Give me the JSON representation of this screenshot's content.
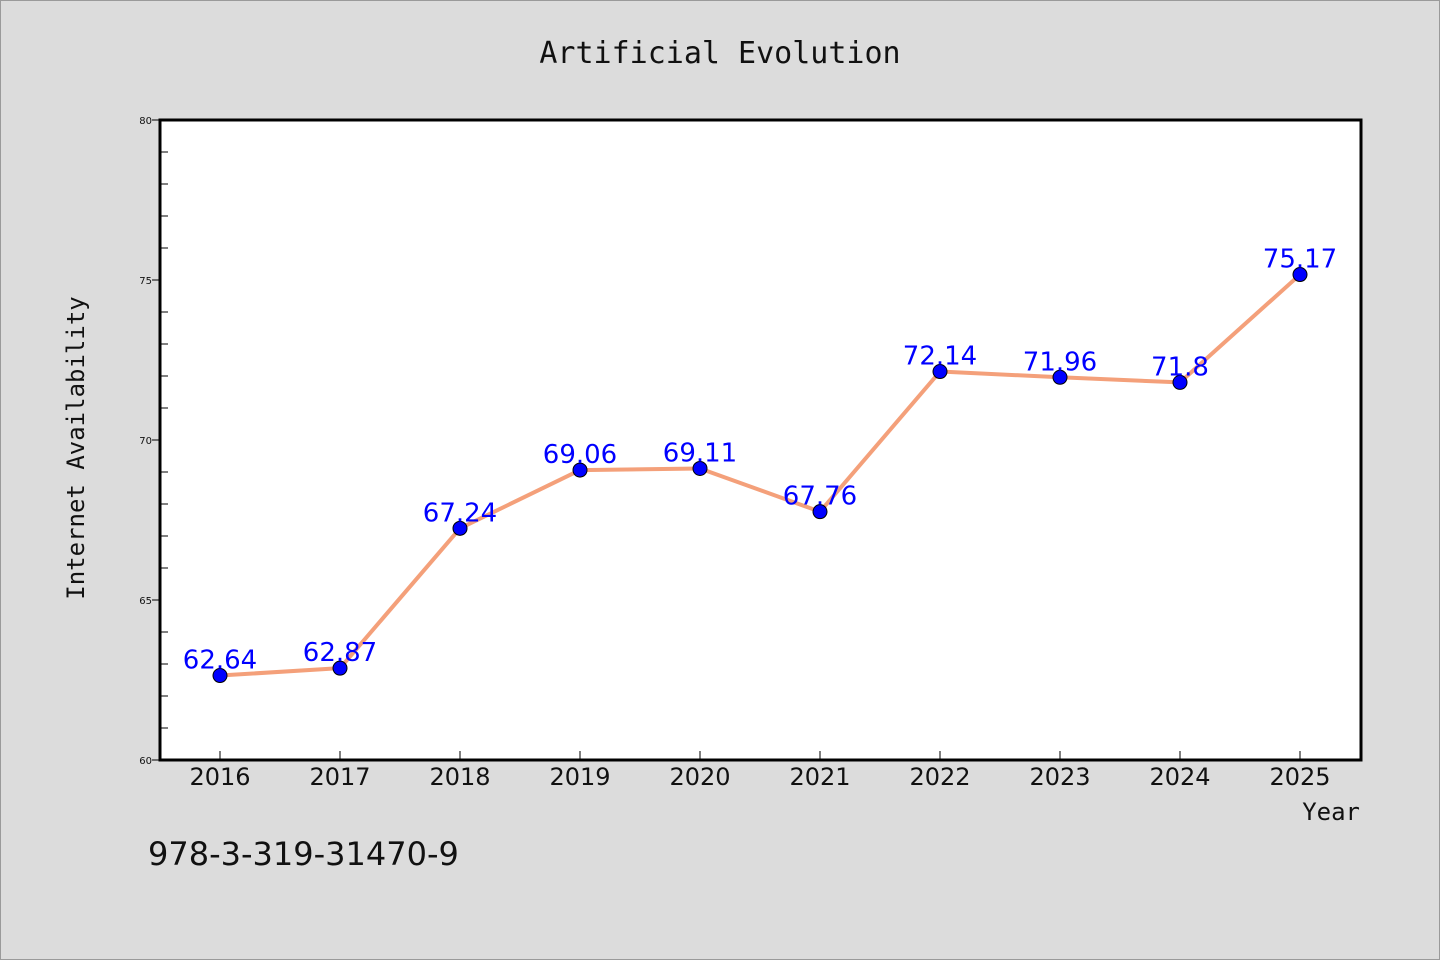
{
  "chart_data": {
    "type": "line",
    "title": "Artificial Evolution",
    "xlabel": "Year",
    "ylabel": "Internet Availability",
    "categories": [
      "2016",
      "2017",
      "2018",
      "2019",
      "2020",
      "2021",
      "2022",
      "2023",
      "2024",
      "2025"
    ],
    "series": [
      {
        "values": [
          62.64,
          62.87,
          67.24,
          69.06,
          69.11,
          67.76,
          72.14,
          71.96,
          71.8,
          75.17
        ],
        "labels": [
          "62.64",
          "62.87",
          "67.24",
          "69.06",
          "69.11",
          "67.76",
          "72.14",
          "71.96",
          "71.8",
          "75.17"
        ],
        "line_color": "#f4a07a",
        "marker_color": "#0000ff"
      }
    ],
    "ylim": [
      60,
      80
    ],
    "yticks": [
      "60",
      "65",
      "70",
      "75",
      "80"
    ],
    "grid": false,
    "legend": "none"
  },
  "footnote": "978-3-319-31470-9",
  "colors": {
    "background": "#dcdcdc",
    "plot_background": "#ffffff",
    "label_color": "#0000ff"
  }
}
